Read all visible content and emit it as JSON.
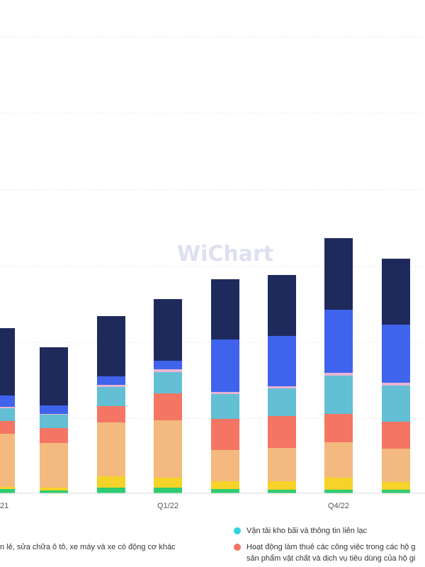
{
  "watermark": "WiChart",
  "chart_data": {
    "type": "bar",
    "stacked": true,
    "visible_x_labels": {
      "first": "21",
      "q1": "Q1/22",
      "q4": "Q4/22"
    },
    "bars": [
      [
        6,
        3,
        75,
        18,
        18,
        2,
        16,
        95
      ],
      [
        4,
        4,
        63,
        21,
        19,
        1,
        12,
        82
      ],
      [
        8,
        16,
        76,
        23,
        27,
        3,
        12,
        85
      ],
      [
        8,
        14,
        81,
        38,
        30,
        4,
        12,
        87
      ],
      [
        6,
        11,
        44,
        44,
        35,
        3,
        74,
        85
      ],
      [
        5,
        12,
        47,
        45,
        39,
        3,
        71,
        86
      ],
      [
        5,
        17,
        50,
        40,
        54,
        4,
        89,
        101
      ],
      [
        5,
        11,
        47,
        38,
        51,
        4,
        82,
        93
      ]
    ],
    "series_colors": [
      "#2ecc71",
      "#f5d328",
      "#f3b97e",
      "#f47563",
      "#62bfd4",
      "#e9b4d2",
      "#3f63ec",
      "#1f2a5c"
    ],
    "grid": true,
    "legend": {
      "position": "bottom",
      "entries": [
        {
          "text": "n lẻ, sửa chữa ô tô, xe máy và xe có động cơ khác",
          "color": "#f3b97e"
        },
        {
          "text": "Vận tải kho bãi và thông tin liên lạc",
          "color": "#2fd2e0"
        },
        {
          "text": "Hoạt động làm thuê các công việc trong các hộ g",
          "color": "#f47563"
        },
        {
          "text": "sản phẩm vật chất và dịch vụ tiêu dùng của hộ gi",
          "color": ""
        }
      ]
    }
  }
}
